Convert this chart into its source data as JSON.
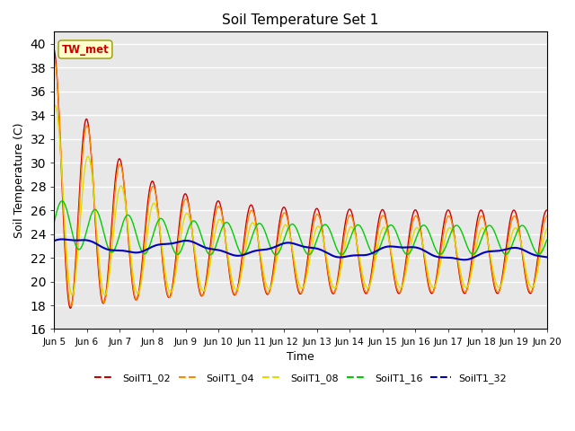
{
  "title": "Soil Temperature Set 1",
  "xlabel": "Time",
  "ylabel": "Soil Temperature (C)",
  "ylim": [
    16,
    41
  ],
  "yticks": [
    16,
    18,
    20,
    22,
    24,
    26,
    28,
    30,
    32,
    34,
    36,
    38,
    40
  ],
  "colors": {
    "SoilT1_02": "#cc0000",
    "SoilT1_04": "#ff8800",
    "SoilT1_08": "#dddd00",
    "SoilT1_16": "#00cc00",
    "SoilT1_32": "#0000bb"
  },
  "annotation_text": "TW_met",
  "annotation_color": "#cc0000",
  "annotation_bg": "#ffffcc",
  "plot_bg": "#e8e8e8",
  "xtick_labels": [
    "Jun 5",
    "Jun 6",
    "Jun 7",
    "Jun 8",
    "Jun 9",
    "Jun 10",
    "Jun 11",
    "Jun 12",
    "Jun 13",
    "Jun 14",
    "Jun 15",
    "Jun 16",
    "Jun 17",
    "Jun 18",
    "Jun 19",
    "Jun 20"
  ],
  "n_points": 720,
  "start_day": 5,
  "end_day": 20
}
